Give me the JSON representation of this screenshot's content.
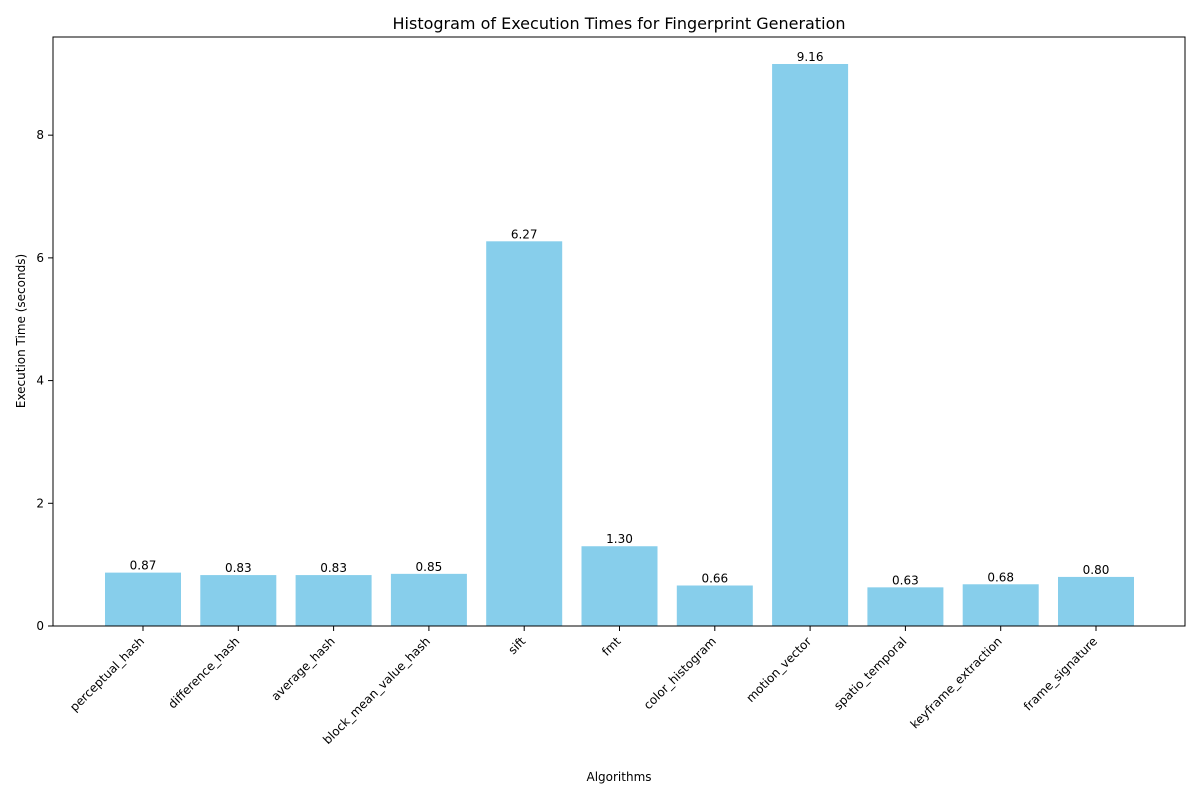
{
  "chart_data": {
    "type": "bar",
    "title": "Histogram of Execution Times for Fingerprint Generation",
    "xlabel": "Algorithms",
    "ylabel": "Execution Time (seconds)",
    "categories": [
      "perceptual_hash",
      "difference_hash",
      "average_hash",
      "block_mean_value_hash",
      "sift",
      "fmt",
      "color_histogram",
      "motion_vector",
      "spatio_temporal",
      "keyframe_extraction",
      "frame_signature"
    ],
    "values": [
      0.87,
      0.83,
      0.83,
      0.85,
      6.27,
      1.3,
      0.66,
      9.16,
      0.63,
      0.68,
      0.8
    ],
    "value_labels": [
      "0.87",
      "0.83",
      "0.83",
      "0.85",
      "6.27",
      "1.30",
      "0.66",
      "9.16",
      "0.63",
      "0.68",
      "0.80"
    ],
    "yticks": [
      "0",
      "2",
      "4",
      "6",
      "8"
    ],
    "ylim": [
      0,
      9.6
    ],
    "bar_color": "#87ceeb",
    "grid": false,
    "legend": "none"
  }
}
